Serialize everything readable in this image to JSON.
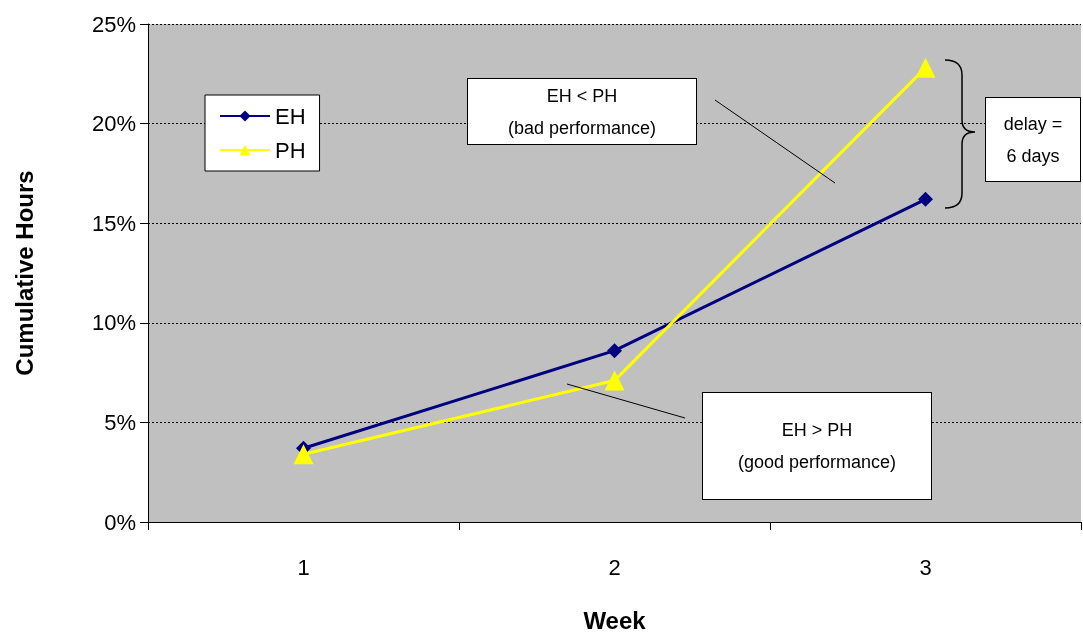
{
  "chart_data": {
    "type": "line",
    "xlabel": "Week",
    "ylabel": "Cumulative Hours",
    "categories": [
      "1",
      "2",
      "3"
    ],
    "series": [
      {
        "name": "EH",
        "color": "#000080",
        "marker": "diamond",
        "values": [
          3.7,
          8.6,
          16.2
        ]
      },
      {
        "name": "PH",
        "color": "#ffff00",
        "marker": "triangle",
        "values": [
          3.4,
          7.1,
          22.8
        ]
      }
    ],
    "ylim": [
      0,
      25
    ],
    "yticks": [
      {
        "value": 0,
        "label": "0%"
      },
      {
        "value": 5,
        "label": "5%"
      },
      {
        "value": 10,
        "label": "10%"
      },
      {
        "value": 15,
        "label": "15%"
      },
      {
        "value": 20,
        "label": "20%"
      },
      {
        "value": 25,
        "label": "25%"
      }
    ],
    "grid": "y",
    "legend": "top left",
    "line_style": "solid",
    "annotations": [
      "EH < PH\n(bad performance)",
      "EH > PH\n(good performance)",
      "delay =\n6 days"
    ]
  }
}
